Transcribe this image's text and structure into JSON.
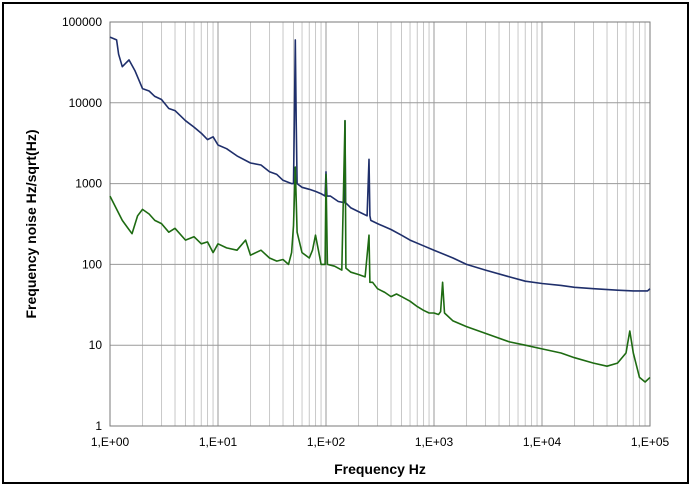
{
  "chart_data": {
    "type": "line",
    "xlabel": "Frequency  Hz",
    "ylabel": "Frequency  noise  Hz/sqrt(Hz)",
    "xscale": "log",
    "yscale": "log",
    "xlim": [
      1,
      100000
    ],
    "ylim": [
      1,
      100000
    ],
    "grid": true,
    "legend": "none",
    "x_ticks": [
      {
        "value": 1,
        "label": "1,E+00"
      },
      {
        "value": 10,
        "label": "1,E+01"
      },
      {
        "value": 100,
        "label": "1,E+02"
      },
      {
        "value": 1000,
        "label": "1,E+03"
      },
      {
        "value": 10000,
        "label": "1,E+04"
      },
      {
        "value": 100000,
        "label": "1,E+05"
      }
    ],
    "y_ticks": [
      {
        "value": 1,
        "label": "1"
      },
      {
        "value": 10,
        "label": "10"
      },
      {
        "value": 100,
        "label": "100"
      },
      {
        "value": 1000,
        "label": "1000"
      },
      {
        "value": 10000,
        "label": "10000"
      },
      {
        "value": 100000,
        "label": "100000"
      }
    ],
    "series": [
      {
        "color": "#1f2f6b",
        "points": [
          [
            1,
            65000
          ],
          [
            1.15,
            60000
          ],
          [
            1.2,
            40000
          ],
          [
            1.3,
            28000
          ],
          [
            1.5,
            34000
          ],
          [
            1.7,
            25000
          ],
          [
            2,
            15000
          ],
          [
            2.3,
            14000
          ],
          [
            2.6,
            12000
          ],
          [
            3,
            11000
          ],
          [
            3.5,
            8500
          ],
          [
            4,
            8000
          ],
          [
            5,
            6000
          ],
          [
            6,
            5000
          ],
          [
            7,
            4200
          ],
          [
            8,
            3500
          ],
          [
            9,
            3800
          ],
          [
            10,
            3000
          ],
          [
            12,
            2700
          ],
          [
            15,
            2200
          ],
          [
            20,
            1800
          ],
          [
            25,
            1700
          ],
          [
            30,
            1400
          ],
          [
            35,
            1300
          ],
          [
            40,
            1100
          ],
          [
            48,
            1000
          ],
          [
            50,
            1000
          ],
          [
            51,
            6500
          ],
          [
            52,
            60000
          ],
          [
            53,
            6000
          ],
          [
            54,
            1000
          ],
          [
            60,
            900
          ],
          [
            70,
            850
          ],
          [
            80,
            800
          ],
          [
            90,
            750
          ],
          [
            98,
            700
          ],
          [
            100,
            1400
          ],
          [
            102,
            700
          ],
          [
            110,
            700
          ],
          [
            130,
            600
          ],
          [
            148,
            580
          ],
          [
            150,
            6000
          ],
          [
            152,
            580
          ],
          [
            170,
            500
          ],
          [
            200,
            450
          ],
          [
            240,
            400
          ],
          [
            250,
            2000
          ],
          [
            255,
            400
          ],
          [
            260,
            350
          ],
          [
            300,
            320
          ],
          [
            400,
            270
          ],
          [
            500,
            230
          ],
          [
            600,
            200
          ],
          [
            800,
            170
          ],
          [
            1000,
            150
          ],
          [
            1500,
            120
          ],
          [
            2000,
            100
          ],
          [
            3000,
            85
          ],
          [
            5000,
            70
          ],
          [
            7000,
            62
          ],
          [
            10000,
            58
          ],
          [
            15000,
            55
          ],
          [
            20000,
            52
          ],
          [
            30000,
            50
          ],
          [
            50000,
            48
          ],
          [
            70000,
            47
          ],
          [
            95000,
            47
          ],
          [
            100000,
            50
          ]
        ]
      },
      {
        "color": "#1e6b12",
        "points": [
          [
            1,
            700
          ],
          [
            1.3,
            350
          ],
          [
            1.6,
            240
          ],
          [
            1.8,
            400
          ],
          [
            2,
            480
          ],
          [
            2.3,
            420
          ],
          [
            2.6,
            350
          ],
          [
            3,
            320
          ],
          [
            3.5,
            250
          ],
          [
            4,
            280
          ],
          [
            5,
            200
          ],
          [
            6,
            220
          ],
          [
            7,
            180
          ],
          [
            8,
            190
          ],
          [
            9,
            140
          ],
          [
            10,
            180
          ],
          [
            12,
            160
          ],
          [
            15,
            150
          ],
          [
            18,
            200
          ],
          [
            20,
            130
          ],
          [
            25,
            150
          ],
          [
            30,
            120
          ],
          [
            35,
            110
          ],
          [
            40,
            115
          ],
          [
            45,
            100
          ],
          [
            48,
            140
          ],
          [
            50,
            300
          ],
          [
            52,
            1600
          ],
          [
            54,
            250
          ],
          [
            60,
            140
          ],
          [
            70,
            120
          ],
          [
            75,
            150
          ],
          [
            80,
            230
          ],
          [
            85,
            150
          ],
          [
            90,
            100
          ],
          [
            98,
            100
          ],
          [
            100,
            1300
          ],
          [
            103,
            100
          ],
          [
            120,
            95
          ],
          [
            140,
            85
          ],
          [
            150,
            6000
          ],
          [
            153,
            90
          ],
          [
            170,
            80
          ],
          [
            200,
            75
          ],
          [
            230,
            70
          ],
          [
            250,
            230
          ],
          [
            255,
            60
          ],
          [
            270,
            60
          ],
          [
            300,
            50
          ],
          [
            350,
            45
          ],
          [
            400,
            40
          ],
          [
            450,
            43
          ],
          [
            500,
            40
          ],
          [
            600,
            35
          ],
          [
            700,
            30
          ],
          [
            800,
            27
          ],
          [
            900,
            25
          ],
          [
            1000,
            25
          ],
          [
            1100,
            24
          ],
          [
            1150,
            26
          ],
          [
            1200,
            60
          ],
          [
            1250,
            25
          ],
          [
            1500,
            20
          ],
          [
            2000,
            17
          ],
          [
            3000,
            14
          ],
          [
            5000,
            11
          ],
          [
            7000,
            10
          ],
          [
            10000,
            9
          ],
          [
            15000,
            8
          ],
          [
            20000,
            7
          ],
          [
            30000,
            6
          ],
          [
            40000,
            5.5
          ],
          [
            50000,
            6
          ],
          [
            60000,
            8
          ],
          [
            65000,
            15
          ],
          [
            70000,
            8
          ],
          [
            80000,
            4
          ],
          [
            90000,
            3.5
          ],
          [
            100000,
            4
          ]
        ]
      }
    ]
  }
}
